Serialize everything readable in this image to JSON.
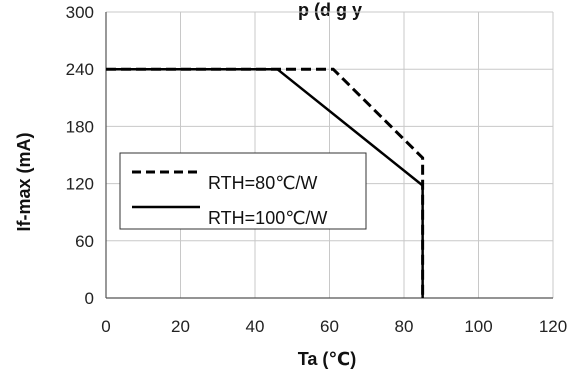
{
  "chart_data": {
    "type": "line",
    "title": "p (d g y",
    "xlabel": "Ta (℃)",
    "ylabel": "If-max (mA)",
    "xlim": [
      0,
      120
    ],
    "ylim": [
      0,
      300
    ],
    "x_ticks": [
      "0",
      "20",
      "40",
      "60",
      "80",
      "100",
      "120"
    ],
    "y_ticks": [
      "0",
      "60",
      "120",
      "180",
      "240",
      "300"
    ],
    "grid": true,
    "legend_position": "middle-left",
    "series": [
      {
        "name": "RTH=80℃/W",
        "style": "dashed",
        "color": "#000000",
        "x": [
          0,
          61,
          85,
          85
        ],
        "y": [
          240,
          240,
          147,
          0
        ]
      },
      {
        "name": "RTH=100℃/W",
        "style": "solid",
        "color": "#000000",
        "x": [
          0,
          46,
          85,
          85
        ],
        "y": [
          240,
          240,
          118,
          0
        ]
      }
    ]
  }
}
